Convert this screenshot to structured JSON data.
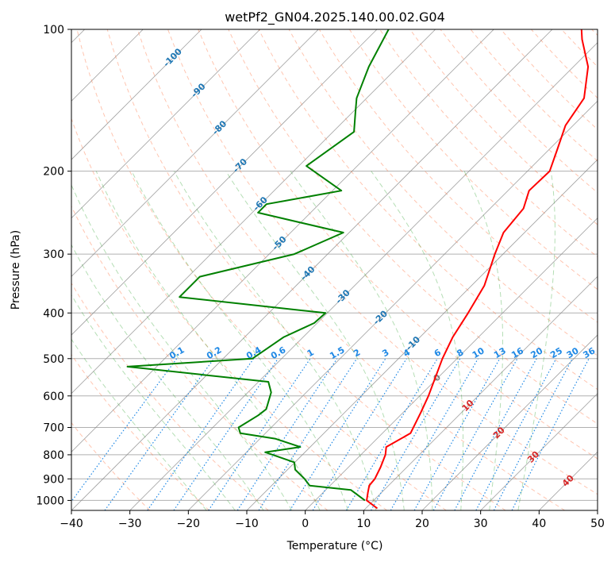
{
  "chart_data": {
    "type": "line",
    "title": "wetPf2_GN04.2025.140.00.02.G04",
    "xlabel": "Temperature (°C)",
    "ylabel": "Pressure (hPa)",
    "xlim": [
      -40,
      50
    ],
    "ylim": [
      1050,
      100
    ],
    "y_scale": "log",
    "skew_degrees_at_plot": 45,
    "grid": true,
    "x_ticks": [
      -40,
      -30,
      -20,
      -10,
      0,
      10,
      20,
      30,
      40,
      50
    ],
    "x_tick_labels": [
      "−40",
      "−30",
      "−20",
      "−10",
      "0",
      "10",
      "20",
      "30",
      "40",
      "50"
    ],
    "y_ticks": [
      100,
      200,
      300,
      400,
      500,
      600,
      700,
      800,
      900,
      1000
    ],
    "y_tick_labels": [
      "100",
      "200",
      "300",
      "400",
      "500",
      "600",
      "700",
      "800",
      "900",
      "1000"
    ],
    "series": [
      {
        "color": "#ff0000",
        "points": [
          [
            1040,
            12.0
          ],
          [
            1000,
            8.8
          ],
          [
            960,
            7.6
          ],
          [
            930,
            6.7
          ],
          [
            900,
            6.5
          ],
          [
            850,
            5.5
          ],
          [
            800,
            4.2
          ],
          [
            770,
            3.0
          ],
          [
            720,
            4.8
          ],
          [
            650,
            3.0
          ],
          [
            600,
            1.5
          ],
          [
            500,
            -2.5
          ],
          [
            450,
            -4.4
          ],
          [
            400,
            -5.9
          ],
          [
            350,
            -7.8
          ],
          [
            300,
            -11.4
          ],
          [
            270,
            -13.6
          ],
          [
            240,
            -14.3
          ],
          [
            220,
            -16.4
          ],
          [
            200,
            -16.2
          ],
          [
            180,
            -18.6
          ],
          [
            160,
            -21.3
          ],
          [
            140,
            -22.8
          ],
          [
            120,
            -27.5
          ],
          [
            105,
            -33.2
          ],
          [
            100,
            -35.0
          ]
        ]
      },
      {
        "color": "#008000",
        "points": [
          [
            1000,
            8.5
          ],
          [
            950,
            4.3
          ],
          [
            930,
            -3.5
          ],
          [
            900,
            -5.5
          ],
          [
            860,
            -8.7
          ],
          [
            830,
            -10.1
          ],
          [
            790,
            -16.8
          ],
          [
            770,
            -11.7
          ],
          [
            740,
            -17.3
          ],
          [
            720,
            -24.3
          ],
          [
            700,
            -25.6
          ],
          [
            660,
            -24.3
          ],
          [
            640,
            -24.0
          ],
          [
            590,
            -26.0
          ],
          [
            560,
            -28.3
          ],
          [
            520,
            -55
          ],
          [
            500,
            -35
          ],
          [
            450,
            -33.3
          ],
          [
            420,
            -30.5
          ],
          [
            400,
            -30.3
          ],
          [
            370,
            -58
          ],
          [
            335,
            -58
          ],
          [
            300,
            -45.7
          ],
          [
            270,
            -41.0
          ],
          [
            245,
            -59
          ],
          [
            235,
            -59
          ],
          [
            220,
            -48.5
          ],
          [
            195,
            -58.7
          ],
          [
            165,
            -56.4
          ],
          [
            150,
            -59.5
          ],
          [
            140,
            -61.7
          ],
          [
            120,
            -65.0
          ],
          [
            100,
            -68.0
          ]
        ]
      }
    ],
    "dry_adiabats_theta_c": [
      -30,
      -20,
      -10,
      0,
      10,
      20,
      30,
      40,
      50,
      60,
      70,
      80,
      90,
      100,
      110,
      120,
      130,
      140,
      150,
      160,
      170,
      180,
      190,
      200
    ],
    "moist_adiabats_start_c": [
      -20,
      -15,
      -10,
      -5,
      0,
      5,
      10,
      15,
      20,
      25,
      30,
      35
    ],
    "isotherm_labels": [
      "-100",
      "-90",
      "-80",
      "-70",
      "-60",
      "-50",
      "-40",
      "-30",
      "-20",
      "-10",
      "0",
      "10",
      "20",
      "30",
      "40"
    ],
    "isotherm_label_positions": [
      {
        "t": -100,
        "p": 115
      },
      {
        "t": -90,
        "p": 135
      },
      {
        "t": -80,
        "p": 162
      },
      {
        "t": -70,
        "p": 195
      },
      {
        "t": -60,
        "p": 235
      },
      {
        "t": -50,
        "p": 285
      },
      {
        "t": -40,
        "p": 330
      },
      {
        "t": -30,
        "p": 370
      },
      {
        "t": -20,
        "p": 410
      },
      {
        "t": -10,
        "p": 465
      },
      {
        "t": 0,
        "p": 550
      },
      {
        "t": 10,
        "p": 630
      },
      {
        "t": 20,
        "p": 720
      },
      {
        "t": 30,
        "p": 810
      },
      {
        "t": 40,
        "p": 910
      }
    ],
    "mixing_ratio_labels": [
      "0.1",
      "0.2",
      "0.4",
      "0.6",
      "1",
      "1.5",
      "2",
      "3",
      "4",
      "6",
      "8",
      "10",
      "13",
      "16",
      "20",
      "25",
      "30",
      "36"
    ],
    "mixing_ratio_values": [
      0.1,
      0.2,
      0.4,
      0.6,
      1,
      1.5,
      2,
      3,
      4,
      6,
      8,
      10,
      13,
      16,
      20,
      25,
      30,
      36
    ],
    "mixing_ratio_top_p": 500,
    "colors": {
      "isotherm_negative": "#1f77b4",
      "isotherm_zero": "#808080",
      "isotherm_positive": "#d62728",
      "mixing_ratio": "#1e88e5",
      "dry_adiabat": "#ff7f50",
      "moist_adiabat": "#2ca02c",
      "skew_isotherm": "#888888",
      "grid": "#b0b0b0"
    }
  }
}
